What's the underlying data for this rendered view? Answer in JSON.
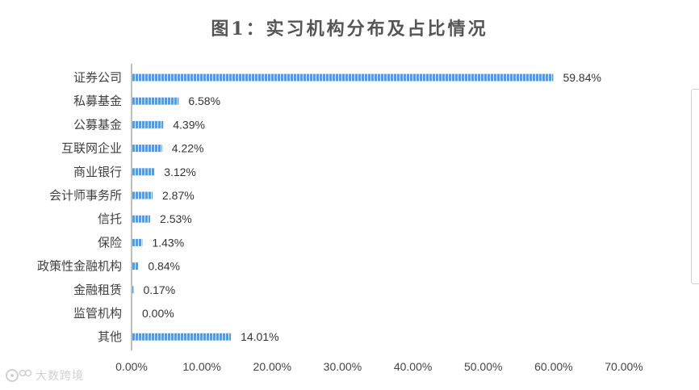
{
  "chart_data": {
    "type": "bar",
    "orientation": "horizontal",
    "title": "图1：实习机构分布及占比情况",
    "categories": [
      "证券公司",
      "私募基金",
      "公募基金",
      "互联网企业",
      "商业银行",
      "会计师事务所",
      "信托",
      "保险",
      "政策性金融机构",
      "金融租赁",
      "监管机构",
      "其他"
    ],
    "values": [
      59.84,
      6.58,
      4.39,
      4.22,
      3.12,
      2.87,
      2.53,
      1.43,
      0.84,
      0.17,
      0.0,
      14.01
    ],
    "value_labels": [
      "59.84%",
      "6.58%",
      "4.39%",
      "4.22%",
      "3.12%",
      "2.87%",
      "2.53%",
      "1.43%",
      "0.84%",
      "0.17%",
      "0.00%",
      "14.01%"
    ],
    "xlim": [
      0,
      70
    ],
    "xticks": [
      0,
      10,
      20,
      30,
      40,
      50,
      60,
      70
    ],
    "xtick_labels": [
      "0.00%",
      "10.00%",
      "20.00%",
      "30.00%",
      "40.00%",
      "50.00%",
      "60.00%",
      "70.00%"
    ],
    "xlabel": "",
    "ylabel": "",
    "grid": false,
    "legend": "none",
    "bar_color": "#5b9bd5",
    "bar_stripe_color": "#ffffff",
    "axis_color": "#bfbfbf"
  },
  "watermark": {
    "icon": "logo-icon",
    "text": "大数跨境"
  }
}
